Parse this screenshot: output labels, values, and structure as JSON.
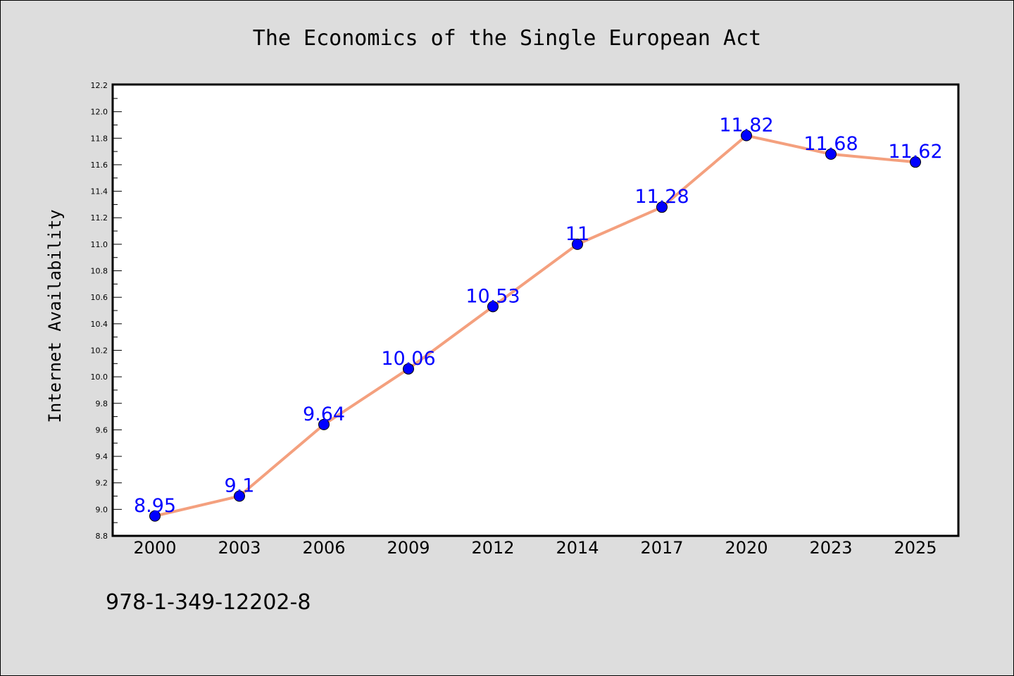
{
  "chart_data": {
    "type": "line",
    "title": "The Economics of the Single European Act",
    "xlabel": "",
    "ylabel": "Internet Availability",
    "categories": [
      "2000",
      "2003",
      "2006",
      "2009",
      "2012",
      "2014",
      "2017",
      "2020",
      "2023",
      "2025"
    ],
    "values": [
      8.95,
      9.1,
      9.64,
      10.06,
      10.53,
      11,
      11.28,
      11.82,
      11.68,
      11.62
    ],
    "data_labels": [
      "8.95",
      "9.1",
      "9.64",
      "10.06",
      "10.53",
      "11",
      "11.28",
      "11.82",
      "11.68",
      "11.62"
    ],
    "ylim": [
      8.8,
      12.2
    ],
    "yticks": [
      "8.8",
      "9.0",
      "9.2",
      "9.4",
      "9.6",
      "9.8",
      "10.0",
      "10.2",
      "10.4",
      "10.6",
      "10.8",
      "11.0",
      "11.2",
      "11.4",
      "11.6",
      "11.8",
      "12.0",
      "12.2"
    ],
    "grid": false,
    "legend": "none",
    "colors": {
      "line": "#f4a07e",
      "marker": "#0000ff",
      "label": "#0000ff",
      "background": "#dddddd",
      "plot_background": "#ffffff"
    }
  },
  "footnote": "978-1-349-12202-8"
}
